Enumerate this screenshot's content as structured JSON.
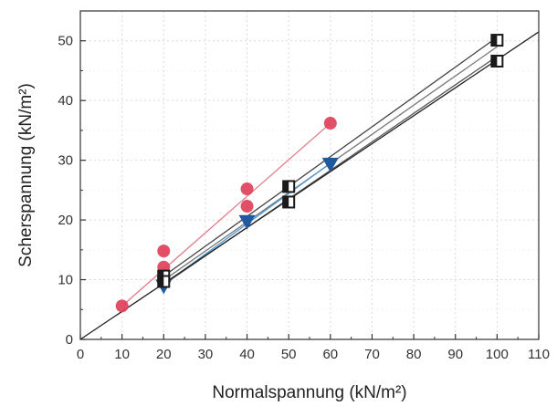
{
  "chart_data": {
    "type": "scatter",
    "title": "",
    "xlabel": "Normalspannung (kN/m²)",
    "ylabel": "Scherspannung (kN/m²)",
    "xlim": [
      0,
      110
    ],
    "ylim": [
      0,
      55
    ],
    "x_ticks": [
      0,
      10,
      20,
      30,
      40,
      50,
      60,
      70,
      80,
      90,
      100,
      110
    ],
    "y_ticks": [
      0,
      10,
      20,
      30,
      40,
      50
    ],
    "grid": true,
    "legend": "none",
    "series": [
      {
        "marker": "circle",
        "color": "#e0405a",
        "points": [
          [
            10,
            5.6
          ],
          [
            20,
            14.8
          ],
          [
            20,
            12.1
          ],
          [
            40,
            25.2
          ],
          [
            40,
            22.3
          ],
          [
            60,
            36.2
          ]
        ]
      },
      {
        "marker": "triangle-down",
        "color": "#1f5a9e",
        "points": [
          [
            20,
            8.8
          ],
          [
            40,
            19.6
          ],
          [
            60,
            29.2
          ]
        ]
      },
      {
        "marker": "square-half-filled",
        "color": "#1a1a1a",
        "points": [
          [
            20,
            10.6
          ],
          [
            20,
            9.7
          ],
          [
            50,
            25.6
          ],
          [
            50,
            23.0
          ],
          [
            100,
            50.1
          ],
          [
            100,
            46.6
          ]
        ]
      }
    ],
    "lines": [
      {
        "color": "#e07a88",
        "from": [
          10,
          5.6
        ],
        "to": [
          60,
          36.2
        ]
      },
      {
        "color": "#444444",
        "from": [
          20,
          10.6
        ],
        "to": [
          100,
          50.6
        ]
      },
      {
        "color": "#777777",
        "from": [
          20,
          9.9
        ],
        "to": [
          100,
          49.0
        ]
      },
      {
        "color": "#4a9ad6",
        "from": [
          20,
          9.2
        ],
        "to": [
          60,
          29.5
        ]
      },
      {
        "color": "#555555",
        "from": [
          20,
          9.2
        ],
        "to": [
          100,
          47.4
        ]
      },
      {
        "color": "#222222",
        "from": [
          0,
          0
        ],
        "to": [
          110,
          51.5
        ]
      }
    ],
    "colors": {
      "grid": "#d9d9d9",
      "axis": "#333333"
    }
  }
}
